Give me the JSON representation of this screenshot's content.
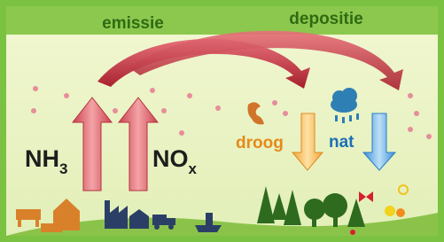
{
  "labels": {
    "emission": "emissie",
    "deposition": "depositie",
    "nh3": {
      "base": "NH",
      "sub": "3"
    },
    "nox": {
      "base": "NO",
      "sub": "x"
    },
    "dry": "droog",
    "wet": "nat"
  }
}
